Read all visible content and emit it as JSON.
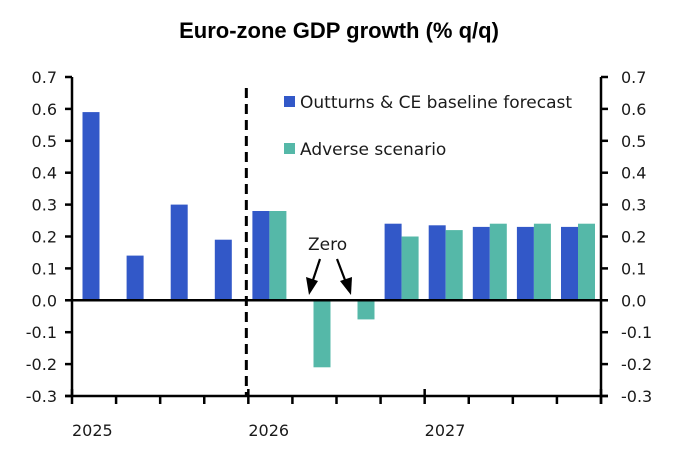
{
  "chart_data": {
    "type": "bar",
    "title": "Euro-zone GDP growth (% q/q)",
    "xlabel": "",
    "ylabel": "",
    "ylim": [
      -0.3,
      0.7
    ],
    "yticks": [
      "0.7",
      "0.6",
      "0.5",
      "0.4",
      "0.3",
      "0.2",
      "0.1",
      "0.0",
      "-0.1",
      "-0.2",
      "-0.3"
    ],
    "ytick_values": [
      0.7,
      0.6,
      0.5,
      0.4,
      0.3,
      0.2,
      0.1,
      0.0,
      -0.1,
      -0.2,
      -0.3
    ],
    "secondary_yaxis": true,
    "grid": false,
    "categories": [
      "2025 Q1",
      "2025 Q2",
      "2025 Q3",
      "2025 Q4",
      "2026 Q1",
      "2026 Q2",
      "2026 Q3",
      "2026 Q4",
      "2027 Q1",
      "2027 Q2",
      "2027 Q3",
      "2027 Q4"
    ],
    "year_labels": [
      {
        "label": "2025",
        "start_index": 0
      },
      {
        "label": "2026",
        "start_index": 4
      },
      {
        "label": "2027",
        "start_index": 8
      }
    ],
    "series": [
      {
        "name": "Outturns & CE baseline forecast",
        "color": "#3258c8",
        "values": [
          0.59,
          0.14,
          0.3,
          0.19,
          0.28,
          0.0,
          0.0,
          0.24,
          0.235,
          0.23,
          0.23,
          0.23
        ]
      },
      {
        "name": "Adverse scenario",
        "color": "#55b8a8",
        "values": [
          null,
          null,
          null,
          null,
          0.28,
          -0.21,
          -0.06,
          0.2,
          0.22,
          0.24,
          0.24,
          0.24
        ]
      }
    ],
    "vertical_marker": {
      "style": "dashed",
      "between": [
        "2025 Q4",
        "2026 Q1"
      ]
    },
    "annotations": [
      {
        "text": "Zero",
        "points_to": [
          "2026 Q2",
          "2026 Q3"
        ],
        "series": "Outturns & CE baseline forecast"
      }
    ],
    "legend": {
      "position": "top-right"
    }
  }
}
